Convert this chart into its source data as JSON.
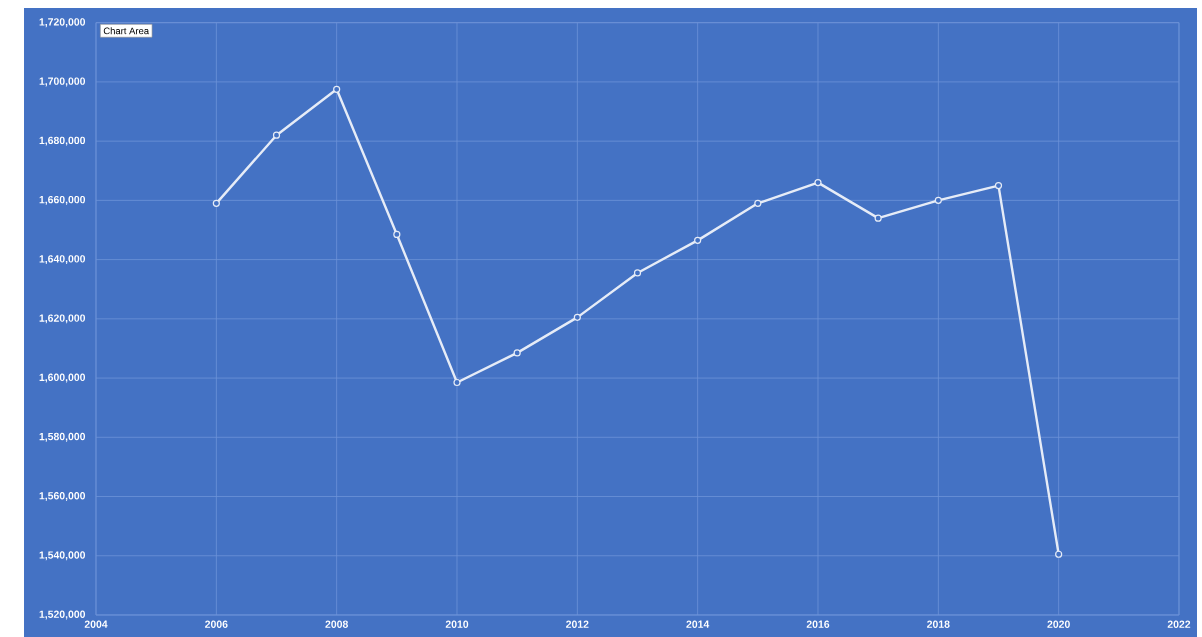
{
  "chart_data": {
    "type": "line",
    "x": [
      2006,
      2007,
      2008,
      2009,
      2010,
      2011,
      2012,
      2013,
      2014,
      2015,
      2016,
      2017,
      2018,
      2019,
      2020
    ],
    "values": [
      1659000,
      1682000,
      1697500,
      1648500,
      1598500,
      1608500,
      1620500,
      1635500,
      1646500,
      1659000,
      1666000,
      1654000,
      1660000,
      1665000,
      1540500
    ],
    "color": "#e6ecf7",
    "marker": "circle",
    "grid": true,
    "xlim": [
      2004,
      2022
    ],
    "xticks": [
      2004,
      2006,
      2008,
      2010,
      2012,
      2014,
      2016,
      2018,
      2020,
      2022
    ],
    "ylim": [
      1520000,
      1720000
    ],
    "yticks": [
      {
        "value": 1520000,
        "label": "1,520,000"
      },
      {
        "value": 1540000,
        "label": "1,540,000"
      },
      {
        "value": 1560000,
        "label": "1,560,000"
      },
      {
        "value": 1580000,
        "label": "1,580,000"
      },
      {
        "value": 1600000,
        "label": "1,600,000"
      },
      {
        "value": 1620000,
        "label": "1,620,000"
      },
      {
        "value": 1640000,
        "label": "1,640,000"
      },
      {
        "value": 1660000,
        "label": "1,660,000"
      },
      {
        "value": 1680000,
        "label": "1,680,000"
      },
      {
        "value": 1700000,
        "label": "1,700,000"
      },
      {
        "value": 1720000,
        "label": "1,720,000"
      }
    ],
    "annotations": [
      "Chart Area"
    ]
  }
}
